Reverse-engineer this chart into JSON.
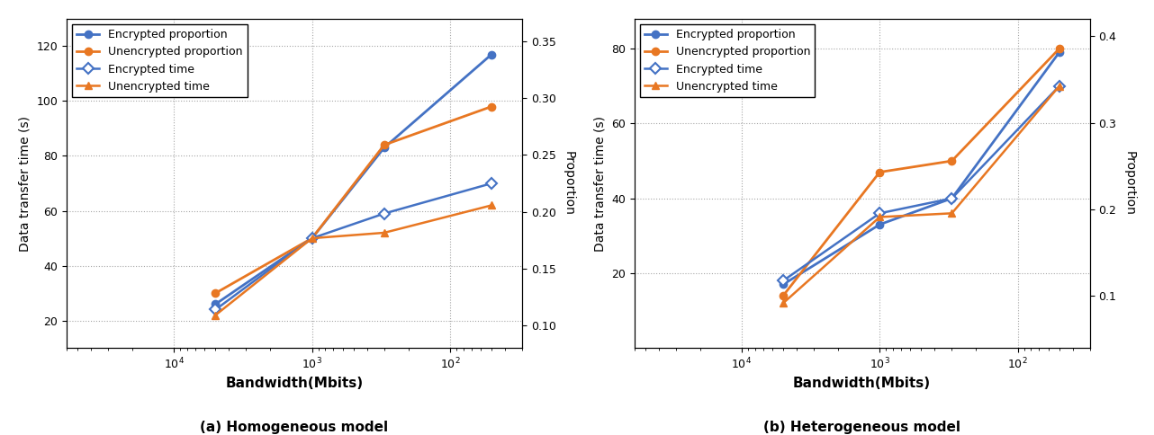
{
  "subplot_a": {
    "title": "(a) Homogeneous model",
    "x": [
      5000,
      1000,
      300,
      50
    ],
    "enc_proportion": [
      26,
      50,
      83,
      117
    ],
    "unenc_proportion": [
      30,
      50,
      84,
      98
    ],
    "enc_time": [
      24,
      50,
      59,
      70
    ],
    "unenc_time": [
      22,
      50,
      52,
      62
    ],
    "ylim_left": [
      10,
      130
    ],
    "ylim_right": [
      0.08,
      0.37
    ],
    "yticks_left": [
      20,
      40,
      60,
      80,
      100,
      120
    ],
    "yticks_right": [
      0.1,
      0.15,
      0.2,
      0.25,
      0.3,
      0.35
    ],
    "xlim": [
      60000,
      30
    ]
  },
  "subplot_b": {
    "title": "(b) Heterogeneous model",
    "x": [
      5000,
      1000,
      300,
      50
    ],
    "enc_proportion": [
      17,
      33,
      40,
      79
    ],
    "unenc_proportion": [
      14,
      47,
      50,
      80
    ],
    "enc_time": [
      18,
      36,
      40,
      70
    ],
    "unenc_time": [
      12,
      35,
      36,
      70
    ],
    "ylim_left": [
      0,
      88
    ],
    "ylim_right": [
      0.04,
      0.42
    ],
    "yticks_left": [
      20,
      40,
      60,
      80
    ],
    "yticks_right": [
      0.1,
      0.2,
      0.3,
      0.4
    ],
    "xlim": [
      60000,
      30
    ]
  },
  "color_blue": "#4472C4",
  "color_orange": "#E87722",
  "xlabel": "Bandwidth(Mbits)",
  "ylabel_left": "Data transfer time (s)",
  "ylabel_right": "Proportion",
  "legend_labels": [
    "Encrypted proportion",
    "Unencrypted proportion",
    "Encrypted time",
    "Unencrypted time"
  ]
}
